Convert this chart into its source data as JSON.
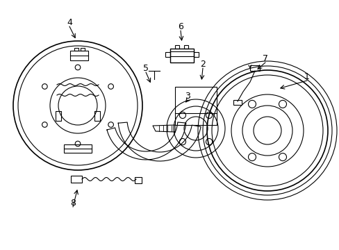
{
  "background_color": "#ffffff",
  "line_color": "#000000",
  "label_color": "#000000"
}
